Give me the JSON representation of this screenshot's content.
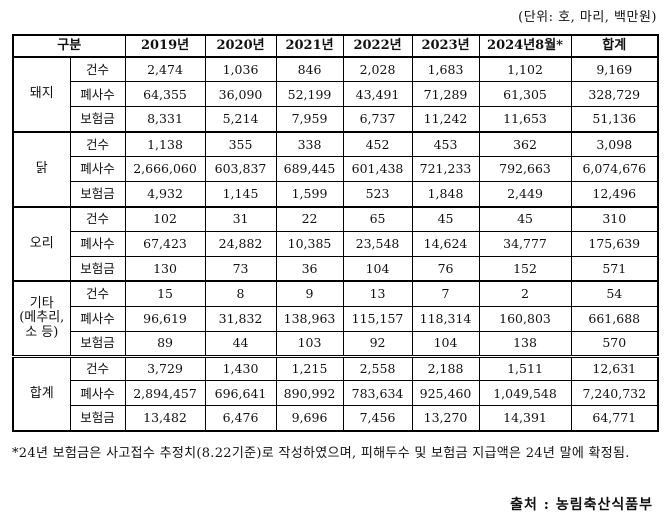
{
  "unit_note": "(단위: 호, 마리, 백만원)",
  "header": {
    "category": "구분",
    "years": [
      "2019년",
      "2020년",
      "2021년",
      "2022년",
      "2023년",
      "2024년8월*"
    ],
    "total": "합계"
  },
  "metrics": [
    "건수",
    "폐사수",
    "보험금"
  ],
  "groups": [
    {
      "name": "돼지",
      "rows": [
        [
          "2,474",
          "1,036",
          "846",
          "2,028",
          "1,683",
          "1,102",
          "9,169"
        ],
        [
          "64,355",
          "36,090",
          "52,199",
          "43,491",
          "71,289",
          "61,305",
          "328,729"
        ],
        [
          "8,331",
          "5,214",
          "7,959",
          "6,737",
          "11,242",
          "11,653",
          "51,136"
        ]
      ]
    },
    {
      "name": "닭",
      "rows": [
        [
          "1,138",
          "355",
          "338",
          "452",
          "453",
          "362",
          "3,098"
        ],
        [
          "2,666,060",
          "603,837",
          "689,445",
          "601,438",
          "721,233",
          "792,663",
          "6,074,676"
        ],
        [
          "4,932",
          "1,145",
          "1,599",
          "523",
          "1,848",
          "2,449",
          "12,496"
        ]
      ]
    },
    {
      "name": "오리",
      "rows": [
        [
          "102",
          "31",
          "22",
          "65",
          "45",
          "45",
          "310"
        ],
        [
          "67,423",
          "24,882",
          "10,385",
          "23,548",
          "14,624",
          "34,777",
          "175,639"
        ],
        [
          "130",
          "73",
          "36",
          "104",
          "76",
          "152",
          "571"
        ]
      ]
    },
    {
      "name": "기타\n(메추리,\n소 등)",
      "rows": [
        [
          "15",
          "8",
          "9",
          "13",
          "7",
          "2",
          "54"
        ],
        [
          "96,619",
          "31,832",
          "138,963",
          "115,157",
          "118,314",
          "160,803",
          "661,688"
        ],
        [
          "89",
          "44",
          "103",
          "92",
          "104",
          "138",
          "570"
        ]
      ]
    },
    {
      "name": "합계",
      "rows": [
        [
          "3,729",
          "1,430",
          "1,215",
          "2,558",
          "2,188",
          "1,511",
          "12,631"
        ],
        [
          "2,894,457",
          "696,641",
          "890,992",
          "783,634",
          "925,460",
          "1,049,548",
          "7,240,732"
        ],
        [
          "13,482",
          "6,476",
          "9,696",
          "7,456",
          "13,270",
          "14,391",
          "64,771"
        ]
      ]
    }
  ],
  "footnote": "*24년 보험금은 사고접수 추정치(8.22기준)로 작성하였으며, 피해두수 및 보험금 지급액은 24년 말에 확정됨.",
  "source": "출처 : 농림축산식품부"
}
